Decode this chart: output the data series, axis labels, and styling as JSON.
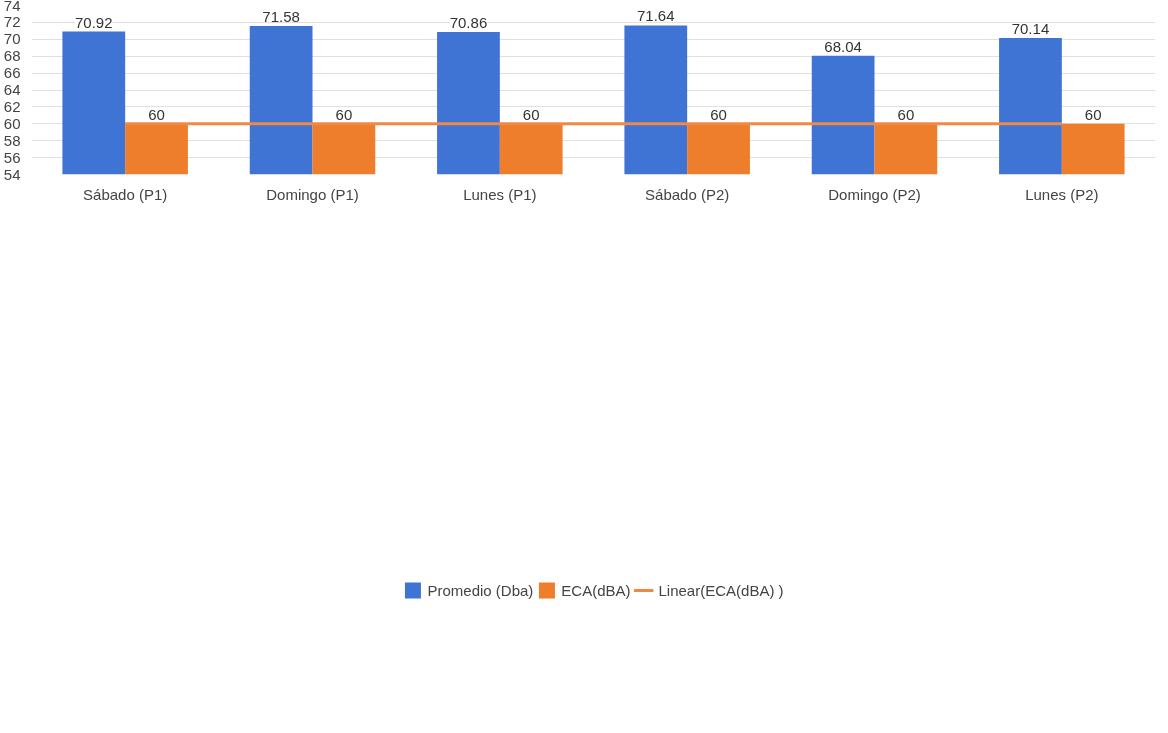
{
  "chart_data": {
    "type": "bar",
    "categories": [
      "Sábado (P1)",
      "Domingo (P1)",
      "Lunes (P1)",
      "Sábado (P2)",
      "Domingo (P2)",
      "Lunes (P2)"
    ],
    "series": [
      {
        "name": "Promedio (Dba)",
        "color": "#3f73d4",
        "values": [
          70.92,
          71.58,
          70.86,
          71.64,
          68.04,
          70.14
        ],
        "value_labels": [
          "70.92",
          "71.58",
          "70.86",
          "71.64",
          "68.04",
          "70.14"
        ]
      },
      {
        "name": "ECA(dBA)",
        "color": "#ee7d2c",
        "values": [
          60,
          60,
          60,
          60,
          60,
          60
        ],
        "value_labels": [
          "60",
          "60",
          "60",
          "60",
          "60",
          "60"
        ]
      },
      {
        "name": "Linear(ECA(dBA) )",
        "type": "line",
        "color": "#ee8a45",
        "values": [
          60,
          60,
          60,
          60,
          60,
          60
        ]
      }
    ],
    "ylim": [
      54,
      74
    ],
    "yticks": [
      54,
      56,
      58,
      60,
      62,
      64,
      66,
      68,
      70,
      72,
      74
    ],
    "grid": "y",
    "legend": "bottom"
  }
}
